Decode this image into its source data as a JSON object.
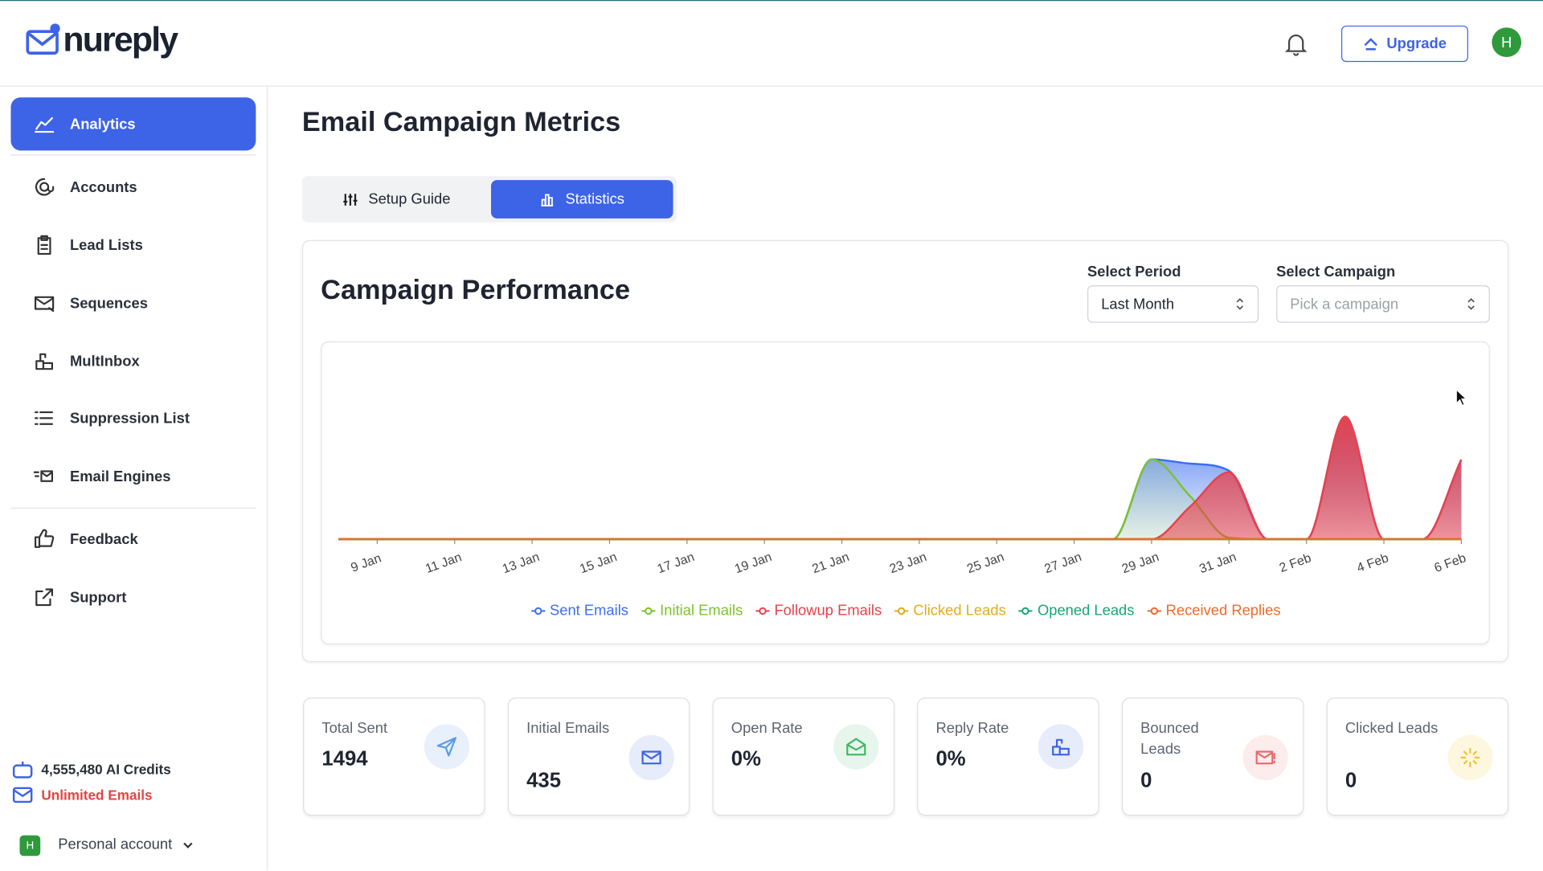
{
  "header": {
    "logo": "nureply",
    "upgrade": "Upgrade",
    "avatar": "H"
  },
  "sidebar": {
    "nav": [
      "Analytics",
      "Accounts",
      "Lead Lists",
      "Sequences",
      "MultInbox",
      "Suppression List",
      "Email Engines",
      "Feedback",
      "Support"
    ],
    "credits": "4,555,480 AI Credits",
    "emails": "Unlimited Emails",
    "account": "Personal account",
    "account_avatar": "H"
  },
  "main": {
    "title": "Email Campaign Metrics",
    "tabs": [
      "Setup Guide",
      "Statistics"
    ],
    "card_title": "Campaign Performance",
    "period_label": "Select Period",
    "period_value": "Last Month",
    "campaign_label": "Select Campaign",
    "campaign_placeholder": "Pick a campaign",
    "stats": [
      {
        "label": "Total Sent",
        "value": "1494"
      },
      {
        "label": "Initial Emails",
        "value": "435"
      },
      {
        "label": "Open Rate",
        "value": "0%"
      },
      {
        "label": "Reply Rate",
        "value": "0%"
      },
      {
        "label": "Bounced Leads",
        "value": "0"
      },
      {
        "label": "Clicked Leads",
        "value": "0"
      }
    ]
  },
  "chart_data": {
    "type": "area",
    "categories": [
      null,
      "9 Jan",
      null,
      "11 Jan",
      null,
      "13 Jan",
      null,
      "15 Jan",
      null,
      "17 Jan",
      null,
      "19 Jan",
      null,
      "21 Jan",
      null,
      "23 Jan",
      null,
      "25 Jan",
      null,
      "27 Jan",
      null,
      "29 Jan",
      null,
      "31 Jan",
      null,
      "2 Feb",
      null,
      "4 Feb",
      null,
      "6 Feb"
    ],
    "ylim": [
      0,
      580
    ],
    "series": [
      {
        "name": "Sent Emails",
        "color": "#3b6ef0",
        "values": [
          0,
          0,
          0,
          0,
          0,
          0,
          0,
          0,
          0,
          0,
          0,
          0,
          0,
          0,
          0,
          0,
          0,
          0,
          0,
          0,
          0,
          280,
          265,
          240,
          0,
          0,
          430,
          0,
          0,
          279
        ]
      },
      {
        "name": "Initial Emails",
        "color": "#7cc22f",
        "values": [
          0,
          0,
          0,
          0,
          0,
          0,
          0,
          0,
          0,
          0,
          0,
          0,
          0,
          0,
          0,
          0,
          0,
          0,
          0,
          0,
          0,
          280,
          150,
          5,
          0,
          0,
          0,
          0,
          0,
          0
        ]
      },
      {
        "name": "Followup Emails",
        "color": "#e8424a",
        "values": [
          0,
          0,
          0,
          0,
          0,
          0,
          0,
          0,
          0,
          0,
          0,
          0,
          0,
          0,
          0,
          0,
          0,
          0,
          0,
          0,
          0,
          0,
          115,
          235,
          0,
          0,
          430,
          0,
          0,
          279
        ]
      },
      {
        "name": "Clicked Leads",
        "color": "#e0ad1a",
        "values": [
          0,
          0,
          0,
          0,
          0,
          0,
          0,
          0,
          0,
          0,
          0,
          0,
          0,
          0,
          0,
          0,
          0,
          0,
          0,
          0,
          0,
          0,
          0,
          0,
          0,
          0,
          0,
          0,
          0,
          0
        ]
      },
      {
        "name": "Opened Leads",
        "color": "#17a673",
        "values": [
          0,
          0,
          0,
          0,
          0,
          0,
          0,
          0,
          0,
          0,
          0,
          0,
          0,
          0,
          0,
          0,
          0,
          0,
          0,
          0,
          0,
          0,
          0,
          0,
          0,
          0,
          0,
          0,
          0,
          0
        ]
      },
      {
        "name": "Received Replies",
        "color": "#f06a2a",
        "values": [
          0,
          0,
          0,
          0,
          0,
          0,
          0,
          0,
          0,
          0,
          0,
          0,
          0,
          0,
          0,
          0,
          0,
          0,
          0,
          0,
          0,
          0,
          0,
          0,
          0,
          0,
          0,
          0,
          0,
          0
        ]
      }
    ]
  }
}
